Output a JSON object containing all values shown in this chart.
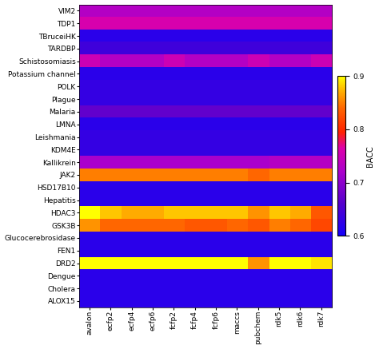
{
  "rows": [
    "VIM2",
    "TDP1",
    "TBruceiHK",
    "TARDBP",
    "Schistosomiasis",
    "Potassium channel",
    "POLK",
    "Plague",
    "Malaria",
    "LMNA",
    "Leishmania",
    "KDM4E",
    "Kallikrein",
    "JAK2",
    "HSD17B10",
    "Hepatitis",
    "HDAC3",
    "GSK3B",
    "Glucocerebrosidase",
    "FEN1",
    "DRD2",
    "Dengue",
    "Cholera",
    "ALOX15"
  ],
  "cols": [
    "avalon",
    "ecfp2",
    "ecfp4",
    "ecfp6",
    "fcfp2",
    "fcfp4",
    "fcfp6",
    "maccs",
    "pubchem",
    "rdk5",
    "rdk6",
    "rdk7"
  ],
  "vmin": 0.6,
  "vmax": 0.9,
  "colorbar_label": "BACC",
  "colorbar_ticks": [
    0.9,
    0.8,
    0.7,
    0.6
  ],
  "data": [
    [
      0.73,
      0.73,
      0.73,
      0.73,
      0.73,
      0.73,
      0.73,
      0.73,
      0.73,
      0.73,
      0.73,
      0.73
    ],
    [
      0.76,
      0.76,
      0.76,
      0.76,
      0.76,
      0.76,
      0.76,
      0.76,
      0.76,
      0.76,
      0.76,
      0.76
    ],
    [
      0.62,
      0.62,
      0.62,
      0.62,
      0.62,
      0.62,
      0.62,
      0.62,
      0.62,
      0.62,
      0.62,
      0.62
    ],
    [
      0.64,
      0.64,
      0.64,
      0.64,
      0.64,
      0.64,
      0.64,
      0.64,
      0.64,
      0.64,
      0.64,
      0.64
    ],
    [
      0.75,
      0.73,
      0.73,
      0.73,
      0.75,
      0.73,
      0.73,
      0.73,
      0.75,
      0.73,
      0.73,
      0.75
    ],
    [
      0.62,
      0.62,
      0.62,
      0.62,
      0.62,
      0.62,
      0.62,
      0.62,
      0.62,
      0.62,
      0.62,
      0.62
    ],
    [
      0.63,
      0.63,
      0.63,
      0.63,
      0.63,
      0.63,
      0.63,
      0.63,
      0.63,
      0.63,
      0.63,
      0.63
    ],
    [
      0.63,
      0.63,
      0.63,
      0.63,
      0.63,
      0.63,
      0.63,
      0.63,
      0.63,
      0.63,
      0.63,
      0.63
    ],
    [
      0.67,
      0.67,
      0.67,
      0.67,
      0.67,
      0.67,
      0.67,
      0.67,
      0.67,
      0.67,
      0.67,
      0.67
    ],
    [
      0.62,
      0.62,
      0.62,
      0.62,
      0.62,
      0.62,
      0.62,
      0.62,
      0.62,
      0.62,
      0.62,
      0.62
    ],
    [
      0.63,
      0.63,
      0.63,
      0.63,
      0.63,
      0.63,
      0.63,
      0.63,
      0.63,
      0.63,
      0.63,
      0.63
    ],
    [
      0.63,
      0.63,
      0.63,
      0.63,
      0.63,
      0.63,
      0.63,
      0.63,
      0.63,
      0.63,
      0.63,
      0.63
    ],
    [
      0.72,
      0.72,
      0.72,
      0.72,
      0.72,
      0.72,
      0.72,
      0.72,
      0.72,
      0.73,
      0.73,
      0.73
    ],
    [
      0.85,
      0.85,
      0.85,
      0.85,
      0.85,
      0.85,
      0.85,
      0.85,
      0.84,
      0.85,
      0.85,
      0.85
    ],
    [
      0.62,
      0.62,
      0.62,
      0.62,
      0.62,
      0.62,
      0.62,
      0.62,
      0.62,
      0.62,
      0.62,
      0.62
    ],
    [
      0.62,
      0.62,
      0.62,
      0.62,
      0.62,
      0.62,
      0.62,
      0.62,
      0.62,
      0.62,
      0.62,
      0.62
    ],
    [
      0.91,
      0.88,
      0.87,
      0.87,
      0.88,
      0.88,
      0.88,
      0.88,
      0.86,
      0.88,
      0.87,
      0.83
    ],
    [
      0.86,
      0.84,
      0.84,
      0.84,
      0.84,
      0.83,
      0.83,
      0.84,
      0.83,
      0.85,
      0.84,
      0.82
    ],
    [
      0.62,
      0.62,
      0.62,
      0.62,
      0.62,
      0.62,
      0.62,
      0.62,
      0.62,
      0.62,
      0.62,
      0.62
    ],
    [
      0.62,
      0.62,
      0.62,
      0.62,
      0.62,
      0.62,
      0.62,
      0.62,
      0.62,
      0.62,
      0.62,
      0.62
    ],
    [
      0.91,
      0.91,
      0.91,
      0.91,
      0.91,
      0.91,
      0.91,
      0.91,
      0.86,
      0.91,
      0.9,
      0.89
    ],
    [
      0.62,
      0.62,
      0.62,
      0.62,
      0.62,
      0.62,
      0.62,
      0.62,
      0.62,
      0.62,
      0.62,
      0.62
    ],
    [
      0.62,
      0.62,
      0.62,
      0.62,
      0.62,
      0.62,
      0.62,
      0.62,
      0.62,
      0.62,
      0.62,
      0.62
    ],
    [
      0.62,
      0.62,
      0.62,
      0.62,
      0.62,
      0.62,
      0.62,
      0.62,
      0.62,
      0.62,
      0.62,
      0.62
    ]
  ],
  "figsize": [
    4.74,
    4.37
  ],
  "dpi": 100,
  "background_color": "#f0f0f0"
}
